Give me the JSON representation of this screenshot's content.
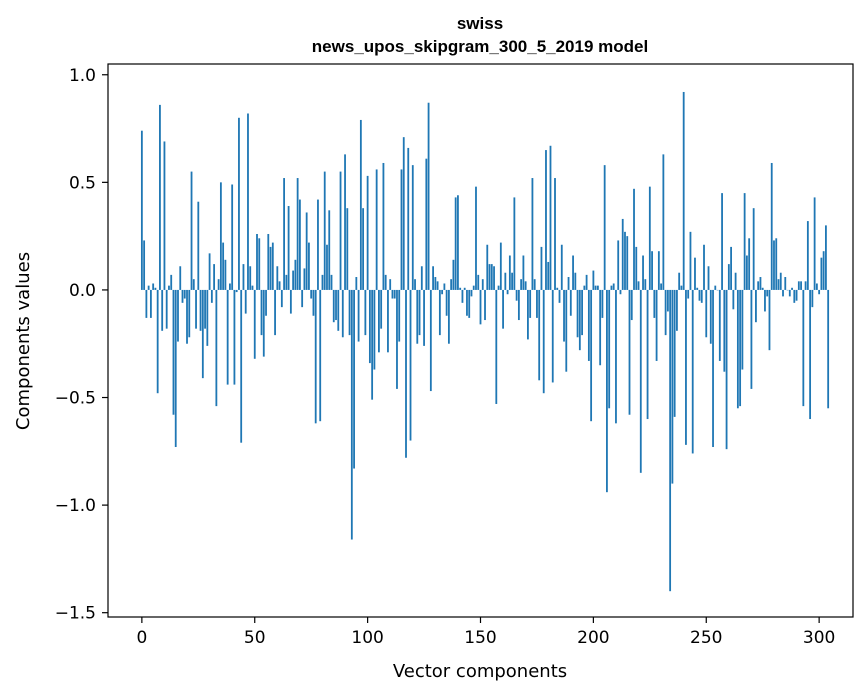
{
  "chart_data": {
    "type": "bar",
    "title": "swiss",
    "subtitle": "news_upos_skipgram_300_5_2019 model",
    "xlabel": "Vector components",
    "ylabel": "Components values",
    "xlim": [
      -15,
      315
    ],
    "ylim": [
      -1.52,
      1.05
    ],
    "xticks": [
      0,
      50,
      100,
      150,
      200,
      250,
      300
    ],
    "xtick_labels": [
      "0",
      "50",
      "100",
      "150",
      "200",
      "250",
      "300"
    ],
    "yticks": [
      -1.5,
      -1.0,
      -0.5,
      0.0,
      0.5,
      1.0
    ],
    "ytick_labels": [
      "−1.5",
      "−1.0",
      "−0.5",
      "0.0",
      "0.5",
      "1.0"
    ],
    "bar_color": "#1f77b4",
    "grid": false,
    "values": [
      0.74,
      0.23,
      -0.13,
      0.02,
      -0.13,
      0.03,
      0.01,
      -0.48,
      0.86,
      -0.19,
      0.69,
      -0.18,
      0.02,
      0.07,
      -0.58,
      -0.73,
      -0.24,
      0.11,
      -0.06,
      -0.04,
      -0.25,
      -0.22,
      0.55,
      0.05,
      -0.18,
      0.41,
      -0.19,
      -0.41,
      -0.18,
      -0.26,
      0.17,
      -0.06,
      0.12,
      -0.54,
      0.05,
      0.5,
      0.22,
      0.14,
      -0.44,
      0.03,
      0.49,
      -0.44,
      -0.01,
      0.8,
      -0.71,
      0.12,
      -0.11,
      0.82,
      0.11,
      0.02,
      -0.32,
      0.26,
      0.24,
      -0.21,
      -0.31,
      -0.12,
      0.26,
      0.2,
      0.22,
      -0.21,
      0.11,
      0.04,
      -0.08,
      0.52,
      0.07,
      0.39,
      -0.11,
      0.09,
      0.14,
      0.52,
      0.42,
      -0.08,
      0.1,
      0.36,
      0.22,
      -0.04,
      -0.12,
      -0.62,
      0.42,
      -0.61,
      0.07,
      0.55,
      0.21,
      0.37,
      0.07,
      -0.15,
      -0.14,
      -0.19,
      0.55,
      -0.22,
      0.63,
      0.38,
      -0.21,
      -1.16,
      -0.83,
      0.06,
      -0.24,
      0.79,
      0.38,
      -0.21,
      0.53,
      -0.34,
      -0.51,
      -0.37,
      0.56,
      -0.29,
      -0.18,
      0.59,
      0.07,
      -0.29,
      0.05,
      -0.04,
      -0.04,
      -0.46,
      -0.24,
      0.56,
      0.71,
      -0.78,
      0.66,
      -0.7,
      0.58,
      0.05,
      -0.25,
      -0.21,
      0.11,
      -0.26,
      0.61,
      0.87,
      -0.47,
      0.11,
      0.06,
      0.04,
      -0.21,
      -0.02,
      0.03,
      -0.12,
      -0.25,
      0.05,
      0.14,
      0.43,
      0.44,
      0.01,
      -0.06,
      0.01,
      -0.12,
      -0.13,
      -0.03,
      0.02,
      0.48,
      0.07,
      -0.16,
      0.05,
      -0.14,
      0.21,
      0.12,
      0.12,
      0.11,
      -0.53,
      0.02,
      0.22,
      -0.18,
      0.08,
      -0.02,
      0.16,
      0.08,
      0.43,
      -0.05,
      -0.14,
      0.05,
      0.16,
      0.04,
      -0.23,
      -0.13,
      0.52,
      0.05,
      -0.13,
      -0.42,
      0.2,
      -0.48,
      0.65,
      0.13,
      0.67,
      -0.43,
      0.52,
      0.01,
      -0.06,
      0.21,
      -0.24,
      -0.38,
      0.06,
      -0.12,
      0.16,
      0.08,
      -0.22,
      -0.28,
      -0.21,
      0.02,
      0.07,
      -0.33,
      -0.61,
      0.09,
      0.02,
      0.02,
      -0.35,
      -0.13,
      0.58,
      -0.94,
      -0.55,
      0.02,
      0.03,
      -0.62,
      0.23,
      -0.02,
      0.33,
      0.27,
      0.25,
      -0.58,
      -0.14,
      0.47,
      0.2,
      0.04,
      -0.85,
      0.16,
      0.05,
      -0.6,
      0.48,
      0.18,
      -0.13,
      -0.33,
      0.18,
      0.03,
      0.63,
      -0.21,
      -0.1,
      -1.4,
      -0.9,
      -0.59,
      -0.19,
      0.08,
      0.02,
      0.92,
      -0.72,
      -0.04,
      0.27,
      -0.76,
      0.15,
      0.01,
      -0.05,
      -0.06,
      0.21,
      -0.22,
      0.11,
      -0.25,
      -0.73,
      0.02,
      0.0,
      -0.33,
      0.45,
      -0.38,
      -0.74,
      0.12,
      0.2,
      -0.09,
      0.08,
      -0.55,
      -0.54,
      -0.37,
      0.45,
      0.16,
      0.24,
      -0.46,
      0.38,
      -0.15,
      0.04,
      0.06,
      0.01,
      -0.1,
      -0.03,
      -0.28,
      0.59,
      0.23,
      0.24,
      0.05,
      0.08,
      -0.03,
      0.06,
      0.0,
      -0.03,
      0.01,
      -0.06,
      -0.05,
      0.04,
      0.04,
      -0.54,
      0.04,
      0.32,
      -0.6,
      -0.08,
      0.43,
      0.03,
      -0.02,
      0.15,
      0.18,
      0.3,
      -0.55
    ]
  }
}
